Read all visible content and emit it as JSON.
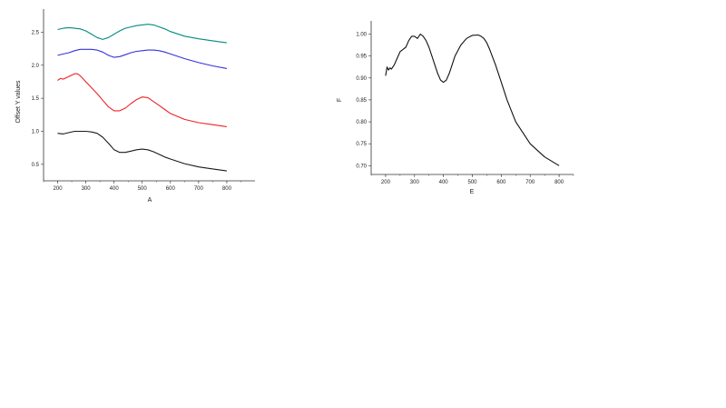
{
  "chart_data": [
    {
      "type": "line",
      "xlabel": "A",
      "ylabel": "Offset Y values",
      "xlim": [
        150,
        900
      ],
      "ylim": [
        0.25,
        2.85
      ],
      "xticks": [
        200,
        300,
        400,
        500,
        600,
        700,
        800
      ],
      "yticks": [
        0.5,
        1.0,
        1.5,
        2.0,
        2.5
      ],
      "ytick_labels": [
        "0.5",
        "1.0",
        "1.5",
        "2.0",
        "2.5"
      ],
      "series": [
        {
          "color": "#008b80",
          "x": [
            200,
            220,
            240,
            260,
            280,
            300,
            320,
            340,
            360,
            380,
            400,
            420,
            440,
            460,
            480,
            500,
            520,
            540,
            560,
            580,
            600,
            650,
            700,
            750,
            800
          ],
          "y": [
            2.54,
            2.56,
            2.57,
            2.56,
            2.55,
            2.52,
            2.47,
            2.42,
            2.39,
            2.42,
            2.47,
            2.52,
            2.56,
            2.58,
            2.6,
            2.61,
            2.62,
            2.61,
            2.58,
            2.55,
            2.51,
            2.44,
            2.4,
            2.37,
            2.34
          ]
        },
        {
          "color": "#3333dd",
          "x": [
            200,
            220,
            240,
            260,
            280,
            300,
            320,
            340,
            360,
            380,
            400,
            420,
            440,
            460,
            480,
            500,
            520,
            540,
            560,
            580,
            600,
            650,
            700,
            750,
            800
          ],
          "y": [
            2.15,
            2.17,
            2.19,
            2.22,
            2.24,
            2.24,
            2.24,
            2.23,
            2.2,
            2.15,
            2.12,
            2.13,
            2.16,
            2.19,
            2.21,
            2.22,
            2.23,
            2.23,
            2.22,
            2.2,
            2.17,
            2.1,
            2.04,
            1.99,
            1.95
          ]
        },
        {
          "color": "#ee2222",
          "x": [
            200,
            210,
            220,
            240,
            260,
            270,
            280,
            300,
            320,
            340,
            360,
            380,
            400,
            420,
            440,
            460,
            480,
            500,
            520,
            540,
            560,
            580,
            600,
            650,
            700,
            750,
            800
          ],
          "y": [
            1.77,
            1.8,
            1.79,
            1.83,
            1.87,
            1.87,
            1.84,
            1.75,
            1.66,
            1.57,
            1.47,
            1.37,
            1.31,
            1.31,
            1.35,
            1.42,
            1.48,
            1.52,
            1.51,
            1.45,
            1.39,
            1.33,
            1.27,
            1.18,
            1.13,
            1.1,
            1.07
          ]
        },
        {
          "color": "#1a1a1a",
          "x": [
            200,
            220,
            240,
            260,
            280,
            300,
            320,
            340,
            360,
            380,
            400,
            420,
            440,
            460,
            480,
            500,
            520,
            540,
            560,
            580,
            600,
            650,
            700,
            750,
            800
          ],
          "y": [
            0.97,
            0.96,
            0.98,
            1.0,
            1.0,
            1.0,
            0.99,
            0.97,
            0.91,
            0.82,
            0.72,
            0.68,
            0.68,
            0.7,
            0.72,
            0.73,
            0.72,
            0.69,
            0.65,
            0.61,
            0.58,
            0.51,
            0.46,
            0.43,
            0.4
          ]
        }
      ]
    },
    {
      "type": "line",
      "xlabel": "E",
      "ylabel": "F",
      "xlim": [
        150,
        850
      ],
      "ylim": [
        0.68,
        1.03
      ],
      "xticks": [
        200,
        300,
        400,
        500,
        600,
        700,
        800
      ],
      "yticks": [
        0.7,
        0.75,
        0.8,
        0.85,
        0.9,
        0.95,
        1.0
      ],
      "ytick_labels": [
        "0.70",
        "0.75",
        "0.80",
        "0.85",
        "0.90",
        "0.95",
        "1.00"
      ],
      "series": [
        {
          "color": "#111111",
          "x": [
            200,
            205,
            210,
            215,
            220,
            230,
            240,
            250,
            260,
            270,
            280,
            290,
            300,
            310,
            320,
            330,
            340,
            350,
            360,
            370,
            380,
            390,
            400,
            410,
            420,
            430,
            440,
            460,
            480,
            500,
            520,
            530,
            540,
            550,
            560,
            580,
            600,
            620,
            650,
            700,
            750,
            800
          ],
          "y": [
            0.905,
            0.925,
            0.918,
            0.923,
            0.92,
            0.93,
            0.945,
            0.96,
            0.965,
            0.97,
            0.985,
            0.995,
            0.995,
            0.99,
            1.0,
            0.995,
            0.985,
            0.97,
            0.95,
            0.93,
            0.91,
            0.895,
            0.89,
            0.895,
            0.91,
            0.93,
            0.95,
            0.975,
            0.99,
            0.997,
            0.998,
            0.995,
            0.99,
            0.98,
            0.965,
            0.93,
            0.89,
            0.85,
            0.8,
            0.75,
            0.72,
            0.7
          ]
        }
      ]
    }
  ]
}
